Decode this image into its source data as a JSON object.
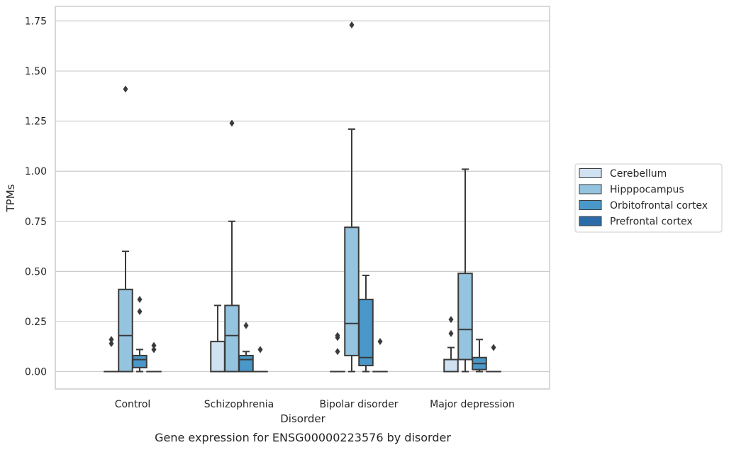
{
  "chart_data": {
    "type": "box",
    "caption": "Gene expression for ENSG00000223576 by disorder",
    "xlabel": "Disorder",
    "ylabel": "TPMs",
    "ylim": [
      -0.085,
      1.82
    ],
    "yticks": [
      "0.00",
      "0.25",
      "0.50",
      "0.75",
      "1.00",
      "1.25",
      "1.50",
      "1.75"
    ],
    "ytick_values": [
      0,
      0.25,
      0.5,
      0.75,
      1.0,
      1.25,
      1.5,
      1.75
    ],
    "grid": "horizontal",
    "legend_position": "right",
    "categories": [
      "Control",
      "Schizophrenia",
      "Bipolar disorder",
      "Major depression"
    ],
    "series": [
      {
        "name": "Cerebellum",
        "color": "#d0e1f2",
        "boxes": [
          {
            "min": 0,
            "q1": 0,
            "median": 0,
            "q3": 0,
            "max": 0,
            "outliers": [
              0.16,
              0.14
            ]
          },
          {
            "min": 0,
            "q1": 0,
            "median": 0,
            "q3": 0.15,
            "max": 0.33,
            "outliers": []
          },
          {
            "min": 0,
            "q1": 0,
            "median": 0,
            "q3": 0,
            "max": 0,
            "outliers": [
              0.18,
              0.17,
              0.1
            ]
          },
          {
            "min": 0,
            "q1": 0,
            "median": 0,
            "q3": 0.06,
            "max": 0.12,
            "outliers": [
              0.26,
              0.19
            ]
          }
        ]
      },
      {
        "name": "Hipppocampus",
        "color": "#94c4df",
        "boxes": [
          {
            "min": 0,
            "q1": 0,
            "median": 0.18,
            "q3": 0.41,
            "max": 0.6,
            "outliers": [
              1.41
            ]
          },
          {
            "min": 0,
            "q1": 0,
            "median": 0.18,
            "q3": 0.33,
            "max": 0.75,
            "outliers": [
              1.24
            ]
          },
          {
            "min": 0,
            "q1": 0.08,
            "median": 0.24,
            "q3": 0.72,
            "max": 1.21,
            "outliers": [
              1.73
            ]
          },
          {
            "min": 0,
            "q1": 0.06,
            "median": 0.21,
            "q3": 0.49,
            "max": 1.01,
            "outliers": []
          }
        ]
      },
      {
        "name": "Orbitofrontal cortex",
        "color": "#4a98c9",
        "boxes": [
          {
            "min": 0,
            "q1": 0.02,
            "median": 0.06,
            "q3": 0.08,
            "max": 0.11,
            "outliers": [
              0.36,
              0.3
            ]
          },
          {
            "min": 0,
            "q1": 0,
            "median": 0.06,
            "q3": 0.08,
            "max": 0.1,
            "outliers": [
              0.23
            ]
          },
          {
            "min": 0,
            "q1": 0.03,
            "median": 0.07,
            "q3": 0.36,
            "max": 0.48,
            "outliers": []
          },
          {
            "min": 0,
            "q1": 0.01,
            "median": 0.04,
            "q3": 0.07,
            "max": 0.16,
            "outliers": []
          }
        ]
      },
      {
        "name": "Prefrontal cortex",
        "color": "#2b6ca8",
        "boxes": [
          {
            "min": 0,
            "q1": 0,
            "median": 0,
            "q3": 0,
            "max": 0,
            "outliers": [
              0.13,
              0.11
            ]
          },
          {
            "min": 0,
            "q1": 0,
            "median": 0,
            "q3": 0,
            "max": 0,
            "outliers": [
              0.11
            ]
          },
          {
            "min": 0,
            "q1": 0,
            "median": 0,
            "q3": 0,
            "max": 0,
            "outliers": [
              0.15
            ]
          },
          {
            "min": 0,
            "q1": 0,
            "median": 0,
            "q3": 0,
            "max": 0,
            "outliers": [
              0.12
            ]
          }
        ]
      }
    ]
  }
}
